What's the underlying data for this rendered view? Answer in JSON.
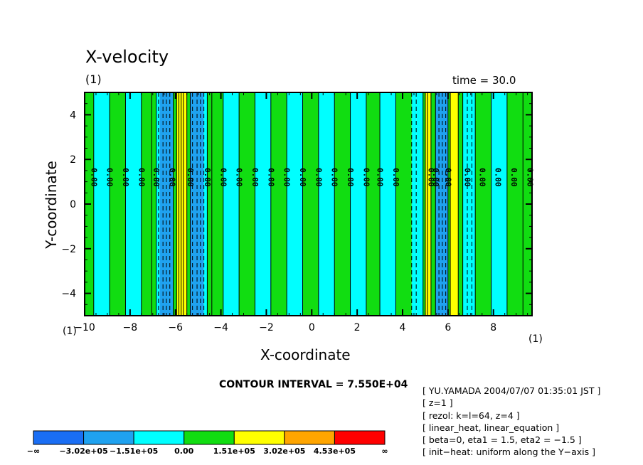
{
  "chart_data": {
    "type": "heatmap",
    "title": "X-velocity",
    "panel_label": "(1)",
    "time_label": "time = 30.0",
    "xlabel": "X-coordinate",
    "ylabel": "Y-coordinate",
    "xlim": [
      -10,
      9.7
    ],
    "ylim": [
      -5,
      5
    ],
    "x_ticks": [
      -10,
      -8,
      -6,
      -4,
      -2,
      0,
      2,
      4,
      6,
      8
    ],
    "y_ticks": [
      4,
      2,
      0,
      -2,
      -4
    ],
    "x_minor_step": 0.5,
    "y_minor_step": 0.5,
    "corner_label_left": "(1)",
    "corner_label_right": "(1)",
    "contour_interval_text": "CONTOUR INTERVAL = 7.550E+04",
    "contour_label_text": "0.00",
    "contour_label_y": 1.2,
    "bands": [
      {
        "x0": -10,
        "x1": -9.6,
        "c": "green"
      },
      {
        "x0": -9.6,
        "x1": -8.9,
        "c": "cyan"
      },
      {
        "x0": -8.9,
        "x1": -8.2,
        "c": "green"
      },
      {
        "x0": -8.2,
        "x1": -7.5,
        "c": "cyan"
      },
      {
        "x0": -7.5,
        "x1": -7.05,
        "c": "green"
      },
      {
        "x0": -7.05,
        "x1": -6.85,
        "c": "green"
      },
      {
        "x0": -6.85,
        "x1": -6.7,
        "c": "cyan"
      },
      {
        "x0": -6.7,
        "x1": -6.1,
        "c": "blue2"
      },
      {
        "x0": -6.1,
        "x1": -5.95,
        "c": "green"
      },
      {
        "x0": -5.95,
        "x1": -5.5,
        "c": "yellow"
      },
      {
        "x0": -5.5,
        "x1": -5.35,
        "c": "green"
      },
      {
        "x0": -5.35,
        "x1": -4.75,
        "c": "blue2"
      },
      {
        "x0": -4.75,
        "x1": -4.6,
        "c": "cyan"
      },
      {
        "x0": -4.6,
        "x1": -4.4,
        "c": "green"
      },
      {
        "x0": -4.4,
        "x1": -3.9,
        "c": "green"
      },
      {
        "x0": -3.9,
        "x1": -3.2,
        "c": "cyan"
      },
      {
        "x0": -3.2,
        "x1": -2.5,
        "c": "green"
      },
      {
        "x0": -2.5,
        "x1": -1.8,
        "c": "cyan"
      },
      {
        "x0": -1.8,
        "x1": -1.1,
        "c": "green"
      },
      {
        "x0": -1.1,
        "x1": -0.4,
        "c": "cyan"
      },
      {
        "x0": -0.4,
        "x1": 0.3,
        "c": "green"
      },
      {
        "x0": 0.3,
        "x1": 1.0,
        "c": "cyan"
      },
      {
        "x0": 1.0,
        "x1": 1.7,
        "c": "green"
      },
      {
        "x0": 1.7,
        "x1": 2.4,
        "c": "cyan"
      },
      {
        "x0": 2.4,
        "x1": 3.0,
        "c": "green"
      },
      {
        "x0": 3.0,
        "x1": 3.7,
        "c": "cyan"
      },
      {
        "x0": 3.7,
        "x1": 4.4,
        "c": "green"
      },
      {
        "x0": 4.4,
        "x1": 4.6,
        "c": "cyan"
      },
      {
        "x0": 4.6,
        "x1": 4.9,
        "c": "cyan"
      },
      {
        "x0": 4.9,
        "x1": 5.0,
        "c": "green"
      },
      {
        "x0": 5.0,
        "x1": 5.25,
        "c": "yellow"
      },
      {
        "x0": 5.25,
        "x1": 5.45,
        "c": "green"
      },
      {
        "x0": 5.45,
        "x1": 6.0,
        "c": "blue2"
      },
      {
        "x0": 6.0,
        "x1": 6.1,
        "c": "green"
      },
      {
        "x0": 6.1,
        "x1": 6.45,
        "c": "yellow"
      },
      {
        "x0": 6.45,
        "x1": 6.65,
        "c": "green"
      },
      {
        "x0": 6.65,
        "x1": 7.2,
        "c": "cyan"
      },
      {
        "x0": 7.2,
        "x1": 7.9,
        "c": "green"
      },
      {
        "x0": 7.9,
        "x1": 8.6,
        "c": "cyan"
      },
      {
        "x0": 8.6,
        "x1": 9.3,
        "c": "green"
      },
      {
        "x0": 9.3,
        "x1": 9.7,
        "c": "green"
      }
    ],
    "solid_contours": [
      -9.6,
      -8.9,
      -8.2,
      -7.5,
      -7.05,
      -6.85,
      -6.1,
      -5.95,
      -5.85,
      -5.75,
      -5.65,
      -5.5,
      -5.35,
      -4.6,
      -4.4,
      -3.9,
      -3.2,
      -2.5,
      -1.8,
      -1.1,
      -0.4,
      0.3,
      1.0,
      1.7,
      2.4,
      3.0,
      3.7,
      4.9,
      5.0,
      5.1,
      5.25,
      5.45,
      6.0,
      6.1,
      6.45,
      6.65,
      7.2,
      7.9,
      8.6,
      9.3
    ],
    "dashed_contours": [
      -6.75,
      -6.55,
      -6.4,
      -6.25,
      -5.25,
      -5.05,
      -4.9,
      -4.75,
      4.4,
      4.6,
      5.6,
      5.75,
      5.9,
      6.85,
      7.05
    ],
    "zero_contour_label_x": [
      -9.6,
      -8.9,
      -8.2,
      -7.5,
      -6.85,
      -6.15,
      -5.35,
      -4.6,
      -3.9,
      -3.2,
      -2.5,
      -1.8,
      -1.1,
      -0.4,
      0.3,
      1.0,
      1.7,
      2.4,
      3.0,
      3.7,
      5.25,
      5.45,
      6.0,
      6.85,
      7.5,
      8.2,
      8.9,
      9.6
    ],
    "colorbar": {
      "colors": [
        "#1a6ef4",
        "#1fa2f0",
        "#00ffff",
        "#11dd11",
        "#ffff00",
        "#ffa500",
        "#ff0000"
      ],
      "tick_labels": [
        "−∞",
        "−3.02e+05",
        "−1.51e+05",
        "0.00",
        "1.51e+05",
        "3.02e+05",
        "4.53e+05",
        "∞"
      ]
    }
  },
  "palette": {
    "blue2": "#1fa2f0",
    "cyan": "#00ffff",
    "green": "#11dd11",
    "yellow": "#ffff00",
    "frame": "#000000"
  },
  "info_lines": [
    "[ YU.YAMADA 2004/07/07 01:35:01 JST ]",
    "[ z=1 ]",
    "[ rezol: k=l=64, z=4 ]",
    "[ linear_heat, linear_equation ]",
    "[ beta=0, eta1 = 1.5, eta2 = −1.5 ]",
    "[ init−heat: uniform along the Y−axis ]"
  ]
}
